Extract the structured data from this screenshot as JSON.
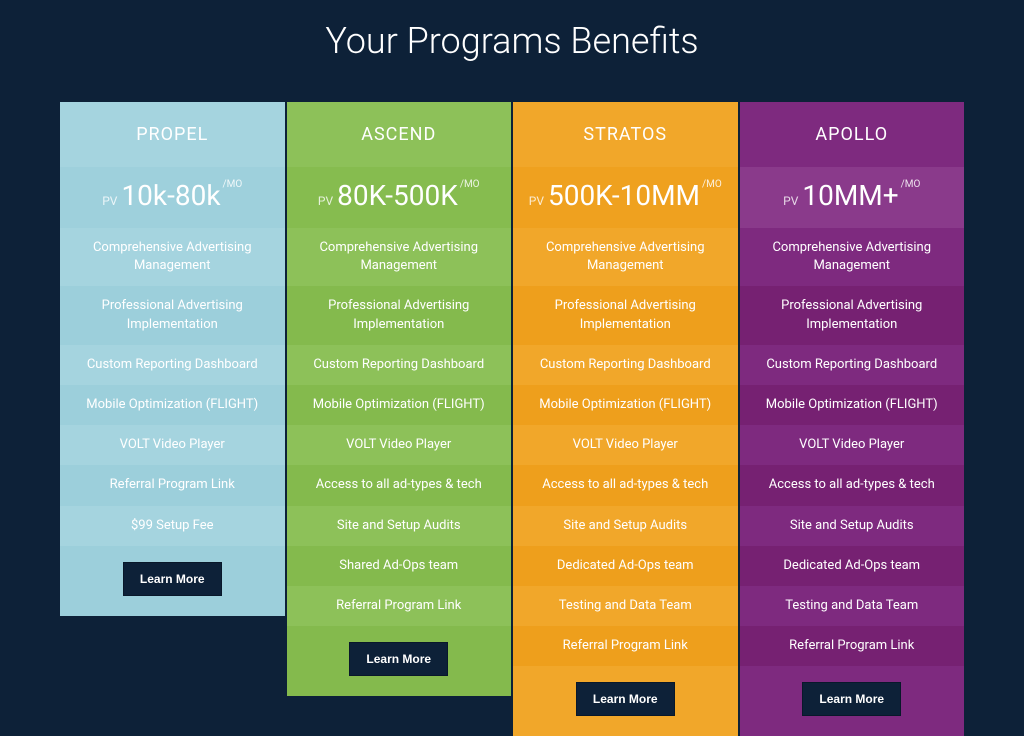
{
  "page": {
    "title": "Your Programs Benefits",
    "background_color": "#0d2138",
    "title_color": "#ffffff"
  },
  "button_label": "Learn More",
  "button_bg": "#0d2138",
  "button_color": "#ffffff",
  "range_prefix": "PV",
  "range_suffix": "/MO",
  "cards": [
    {
      "id": "propel",
      "name": "PROPEL",
      "range": "10k-80k",
      "color_header": "#a5d4df",
      "color_range": "#9ed0dc",
      "stripe_a": "#a5d4df",
      "stripe_b": "#9ccfdb",
      "features": [
        "Comprehensive Advertising Management",
        "Professional Advertising Implementation",
        "Custom Reporting Dashboard",
        "Mobile Optimization (FLIGHT)",
        "VOLT Video Player",
        "Referral Program Link",
        "$99 Setup Fee"
      ]
    },
    {
      "id": "ascend",
      "name": "ASCEND",
      "range": "80K-500K",
      "color_header": "#8dc159",
      "color_range": "#86bc4f",
      "stripe_a": "#8dc159",
      "stripe_b": "#84ba4d",
      "features": [
        "Comprehensive Advertising Management",
        "Professional Advertising Implementation",
        "Custom Reporting Dashboard",
        "Mobile Optimization (FLIGHT)",
        "VOLT Video Player",
        "Access to all ad-types & tech",
        "Site and Setup Audits",
        "Shared Ad-Ops team",
        "Referral Program Link"
      ]
    },
    {
      "id": "stratos",
      "name": "STRATOS",
      "range": "500K-10MM",
      "color_header": "#f1a72a",
      "color_range": "#efa11f",
      "stripe_a": "#f1a72a",
      "stripe_b": "#ee9f1c",
      "features": [
        "Comprehensive Advertising Management",
        "Professional Advertising Implementation",
        "Custom Reporting Dashboard",
        "Mobile Optimization (FLIGHT)",
        "VOLT Video Player",
        "Access to all ad-types & tech",
        "Site and Setup Audits",
        "Dedicated Ad-Ops team",
        "Testing and Data Team",
        "Referral Program Link"
      ]
    },
    {
      "id": "apollo",
      "name": "APOLLO",
      "range": "10MM+",
      "color_header": "#7e2a7f",
      "color_range": "#8a3a8b",
      "stripe_a": "#7e2a7f",
      "stripe_b": "#762172",
      "features": [
        "Comprehensive Advertising Management",
        "Professional Advertising Implementation",
        "Custom Reporting Dashboard",
        "Mobile Optimization (FLIGHT)",
        "VOLT Video Player",
        "Access to all ad-types & tech",
        "Site and Setup Audits",
        "Dedicated Ad-Ops team",
        "Testing and Data Team",
        "Referral Program Link"
      ]
    }
  ]
}
